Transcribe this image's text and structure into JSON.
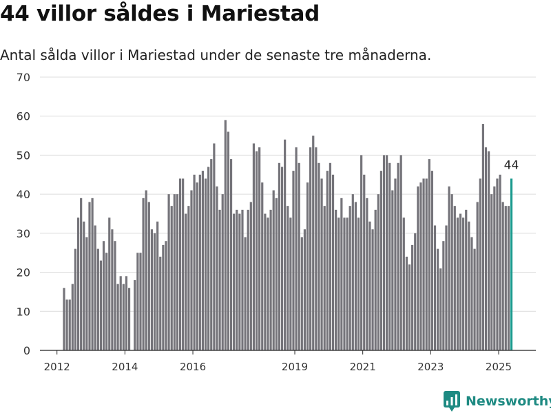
{
  "title": "44 villor såldes i Mariestad",
  "subtitle": "Antal sålda villor i Mariestad under de senaste tre månaderna.",
  "brand": {
    "name": "Newsworthy",
    "icon": "newsworthy-logo-icon",
    "color": "#1e8a82"
  },
  "chart_data": {
    "type": "bar",
    "title": "44 villor såldes i Mariestad",
    "subtitle": "Antal sålda villor i Mariestad under de senaste tre månaderna.",
    "xlabel": "",
    "ylabel": "",
    "ylim": [
      0,
      70
    ],
    "y_ticks": [
      0,
      10,
      20,
      30,
      40,
      50,
      60,
      70
    ],
    "x_ticks": [
      "2012",
      "2014",
      "2016",
      "2019",
      "2021",
      "2023",
      "2025"
    ],
    "grid": true,
    "bar_color": "#75747a",
    "highlight_color": "#1a9a8e",
    "highlight_label": "44",
    "x_start": "2012-03",
    "x_end": "2025-04",
    "x_step": "month",
    "values": [
      16,
      13,
      13,
      17,
      26,
      34,
      39,
      33,
      29,
      38,
      39,
      32,
      26,
      23,
      28,
      25,
      34,
      31,
      28,
      17,
      19,
      17,
      19,
      16,
      0,
      18,
      25,
      25,
      39,
      41,
      38,
      31,
      30,
      33,
      24,
      27,
      28,
      40,
      37,
      40,
      40,
      44,
      44,
      35,
      37,
      41,
      45,
      43,
      45,
      46,
      44,
      47,
      49,
      53,
      42,
      36,
      40,
      59,
      56,
      49,
      35,
      36,
      35,
      36,
      29,
      36,
      38,
      53,
      51,
      52,
      43,
      35,
      34,
      36,
      41,
      39,
      48,
      47,
      54,
      37,
      34,
      46,
      52,
      48,
      29,
      31,
      43,
      52,
      55,
      52,
      48,
      44,
      37,
      46,
      48,
      45,
      36,
      34,
      39,
      34,
      34,
      37,
      40,
      38,
      34,
      50,
      45,
      39,
      33,
      31,
      36,
      40,
      46,
      50,
      50,
      48,
      41,
      44,
      48,
      50,
      34,
      24,
      22,
      27,
      30,
      42,
      43,
      44,
      44,
      49,
      46,
      32,
      26,
      21,
      28,
      32,
      42,
      40,
      37,
      34,
      35,
      34,
      36,
      33,
      29,
      26,
      38,
      44,
      58,
      52,
      51,
      40,
      42,
      44,
      45,
      38,
      37,
      37,
      44
    ]
  }
}
